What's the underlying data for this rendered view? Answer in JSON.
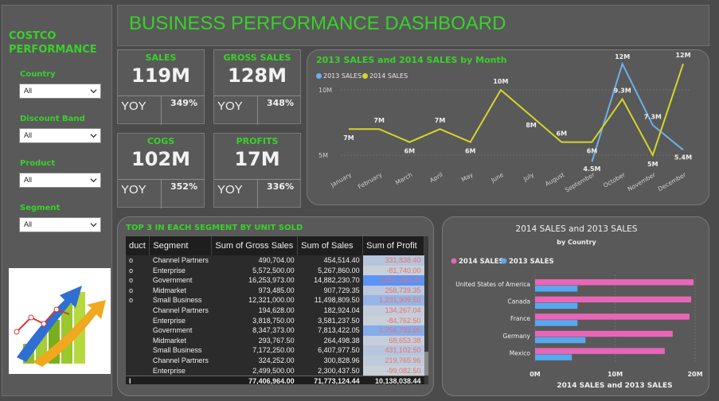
{
  "sidebar": {
    "brand_line1": "COSTCO",
    "brand_line2": "PERFORMANCE",
    "filters": [
      {
        "label": "Country",
        "value": "All"
      },
      {
        "label": "Discount Band",
        "value": "All"
      },
      {
        "label": "Product",
        "value": "All"
      },
      {
        "label": "Segment",
        "value": "All"
      }
    ]
  },
  "header": {
    "title": "BUSINESS PERFORMANCE DASHBOARD"
  },
  "kpis": [
    {
      "label": "SALES",
      "value": "119M",
      "yoy_label": "YOY",
      "yoy": "349%"
    },
    {
      "label": "GROSS SALES",
      "value": "128M",
      "yoy_label": "YOY",
      "yoy": "348%"
    },
    {
      "label": "COGS",
      "value": "102M",
      "yoy_label": "YOY",
      "yoy": "352%"
    },
    {
      "label": "PROFITS",
      "value": "17M",
      "yoy_label": "YOY",
      "yoy": "336%"
    }
  ],
  "colors": {
    "accent": "#39d12a",
    "sales2013": "#6ab0ec",
    "sales2014": "#d6d42a",
    "bar2014": "#e866b8",
    "bar2013": "#58a8f0"
  },
  "chart_data": [
    {
      "type": "line",
      "title": "2013 SALES and 2014 SALES by Month",
      "x": [
        "January",
        "February",
        "March",
        "April",
        "May",
        "June",
        "July",
        "August",
        "September",
        "October",
        "November",
        "December"
      ],
      "y_ticks": [
        "10M",
        "5M"
      ],
      "ylim": [
        0,
        13
      ],
      "series": [
        {
          "name": "2013 SALES",
          "values": [
            null,
            null,
            null,
            null,
            null,
            null,
            null,
            null,
            4.5,
            12,
            7.3,
            5.4
          ],
          "labels": [
            "",
            "",
            "",
            "",
            "",
            "",
            "",
            "",
            "4.5M",
            "12M",
            "7.3M",
            "5.4M"
          ]
        },
        {
          "name": "2014 SALES",
          "values": [
            7,
            7,
            6,
            7,
            6,
            10,
            8,
            6,
            6,
            9.3,
            5,
            12
          ],
          "labels": [
            "7M",
            "7M",
            "6M",
            "7M",
            "6M",
            "10M",
            "8M",
            "6M",
            "6M",
            "9.3M",
            "5M",
            "12M"
          ]
        }
      ]
    },
    {
      "type": "bar",
      "title": "2014 SALES and 2013 SALES",
      "subtitle": "by Country",
      "xlabel": "2014 SALES and 2013 SALES",
      "categories": [
        "United States of America",
        "Canada",
        "France",
        "Germany",
        "Mexico"
      ],
      "x_ticks": [
        "0M",
        "10M",
        "20M"
      ],
      "xlim": [
        0,
        20
      ],
      "series": [
        {
          "name": "2014 SALES",
          "values": [
            19.8,
            19.5,
            19.3,
            17.2,
            16.2
          ]
        },
        {
          "name": "2013 SALES",
          "values": [
            5.3,
            5.3,
            5.3,
            6.3,
            4.6
          ]
        }
      ]
    }
  ],
  "table": {
    "title": "TOP 3 IN EACH SEGMENT BY UNIT SOLD",
    "columns": [
      "duct",
      "Segment",
      "Sum of Gross Sales",
      "Sum of Sales",
      "Sum of Profit"
    ],
    "rows": [
      [
        "o",
        "Channel Partners",
        "490,704.00",
        "454,514.40",
        "331,838.40"
      ],
      [
        "o",
        "Enterprise",
        "5,572,500.00",
        "5,267,860.00",
        "-81,740.00"
      ],
      [
        "o",
        "Government",
        "16,253,973.00",
        "14,882,230.70",
        "3,057,290.70"
      ],
      [
        "o",
        "Midmarket",
        "973,485.00",
        "907,729.35",
        "258,739.35"
      ],
      [
        "o",
        "Small Business",
        "12,321,000.00",
        "11,498,809.50",
        "1,231,309.50"
      ],
      [
        "",
        "Channel Partners",
        "194,628.00",
        "182,924.04",
        "134,267.04"
      ],
      [
        "",
        "Enterprise",
        "3,818,750.00",
        "3,581,237.50",
        "-84,762.50"
      ],
      [
        "",
        "Government",
        "8,347,373.00",
        "7,813,422.05",
        "1,756,732.05"
      ],
      [
        "",
        "Midmarket",
        "293,767.50",
        "264,498.38",
        "68,653.38"
      ],
      [
        "",
        "Small Business",
        "7,172,250.00",
        "6,407,977.50",
        "431,102.50"
      ],
      [
        "",
        "Channel Partners",
        "324,252.00",
        "300,828.96",
        "219,765.96"
      ],
      [
        "",
        "Enterprise",
        "2,499,500.00",
        "2,300,437.50",
        "-99,082.50"
      ]
    ],
    "total": [
      "l",
      "",
      "77,406,964.00",
      "71,773,124.44",
      "10,138,038.44"
    ]
  }
}
